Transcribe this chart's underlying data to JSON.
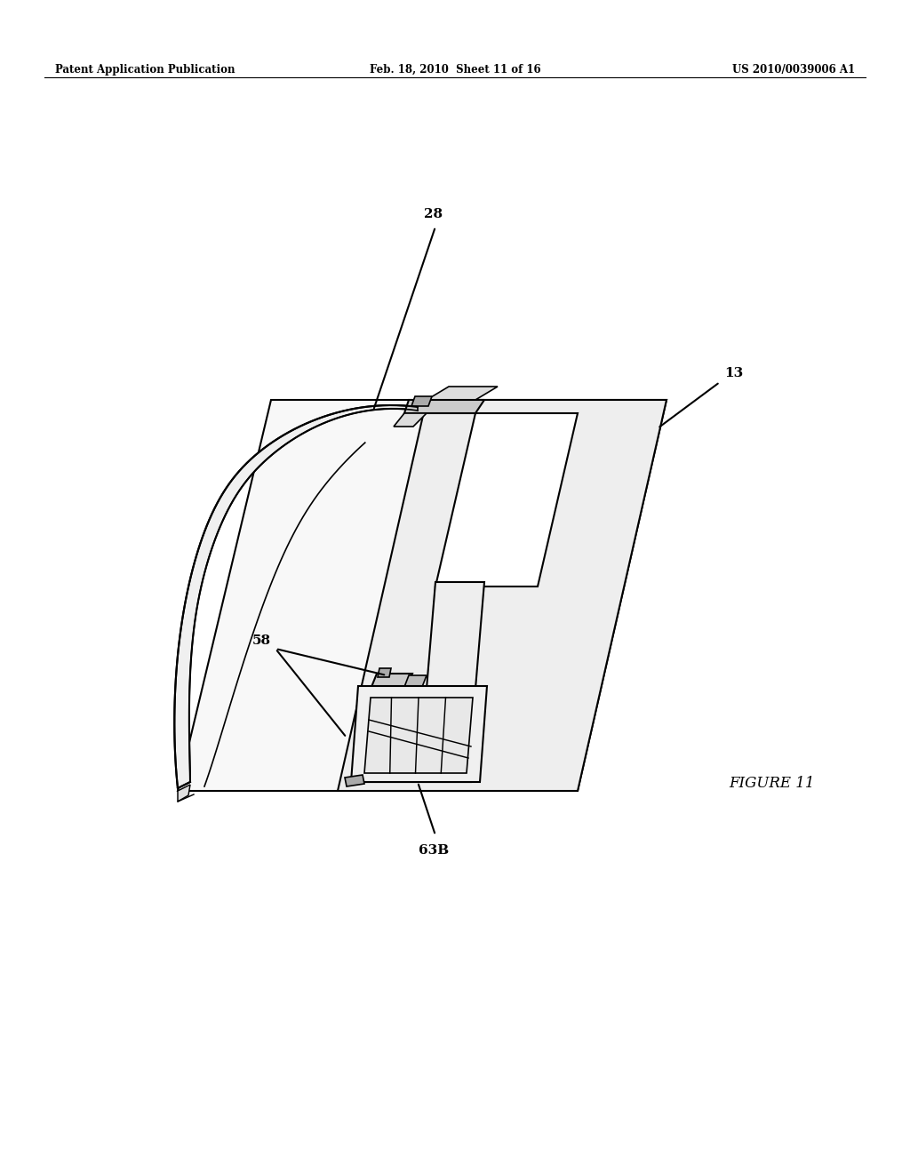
{
  "background_color": "#ffffff",
  "header_left": "Patent Application Publication",
  "header_center": "Feb. 18, 2010  Sheet 11 of 16",
  "header_right": "US 2010/0039006 A1",
  "figure_label": "FIGURE 11",
  "label_28": "28",
  "label_13": "13",
  "label_58": "58",
  "label_63B": "63B",
  "line_color": "#000000",
  "line_width": 1.5
}
